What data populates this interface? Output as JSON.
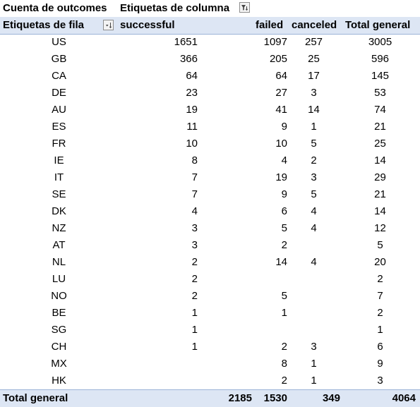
{
  "header": {
    "values_label": "Cuenta de outcomes",
    "columns_label": "Etiquetas de columna",
    "rows_label": "Etiquetas de fila",
    "col_successful": "successful",
    "col_failed": "failed",
    "col_canceled": "canceled",
    "col_total": "Total general"
  },
  "icons": {
    "column_filter": "filter-icon",
    "row_sort": "sort-filter-icon"
  },
  "rows": [
    {
      "country": "US",
      "successful": "1651",
      "failed": "1097",
      "canceled": "257",
      "total": "3005"
    },
    {
      "country": "GB",
      "successful": "366",
      "failed": "205",
      "canceled": "25",
      "total": "596"
    },
    {
      "country": "CA",
      "successful": "64",
      "failed": "64",
      "canceled": "17",
      "total": "145"
    },
    {
      "country": "DE",
      "successful": "23",
      "failed": "27",
      "canceled": "3",
      "total": "53"
    },
    {
      "country": "AU",
      "successful": "19",
      "failed": "41",
      "canceled": "14",
      "total": "74"
    },
    {
      "country": "ES",
      "successful": "11",
      "failed": "9",
      "canceled": "1",
      "total": "21"
    },
    {
      "country": "FR",
      "successful": "10",
      "failed": "10",
      "canceled": "5",
      "total": "25"
    },
    {
      "country": "IE",
      "successful": "8",
      "failed": "4",
      "canceled": "2",
      "total": "14"
    },
    {
      "country": "IT",
      "successful": "7",
      "failed": "19",
      "canceled": "3",
      "total": "29"
    },
    {
      "country": "SE",
      "successful": "7",
      "failed": "9",
      "canceled": "5",
      "total": "21"
    },
    {
      "country": "DK",
      "successful": "4",
      "failed": "6",
      "canceled": "4",
      "total": "14"
    },
    {
      "country": "NZ",
      "successful": "3",
      "failed": "5",
      "canceled": "4",
      "total": "12"
    },
    {
      "country": "AT",
      "successful": "3",
      "failed": "2",
      "canceled": "",
      "total": "5"
    },
    {
      "country": "NL",
      "successful": "2",
      "failed": "14",
      "canceled": "4",
      "total": "20"
    },
    {
      "country": "LU",
      "successful": "2",
      "failed": "",
      "canceled": "",
      "total": "2"
    },
    {
      "country": "NO",
      "successful": "2",
      "failed": "5",
      "canceled": "",
      "total": "7"
    },
    {
      "country": "BE",
      "successful": "1",
      "failed": "1",
      "canceled": "",
      "total": "2"
    },
    {
      "country": "SG",
      "successful": "1",
      "failed": "",
      "canceled": "",
      "total": "1"
    },
    {
      "country": "CH",
      "successful": "1",
      "failed": "2",
      "canceled": "3",
      "total": "6"
    },
    {
      "country": "MX",
      "successful": "",
      "failed": "8",
      "canceled": "1",
      "total": "9"
    },
    {
      "country": "HK",
      "successful": "",
      "failed": "2",
      "canceled": "1",
      "total": "3"
    }
  ],
  "grand_total": {
    "label": "Total general",
    "blank": "2185",
    "failed": "1530",
    "canceled": "349",
    "total": "4064"
  }
}
